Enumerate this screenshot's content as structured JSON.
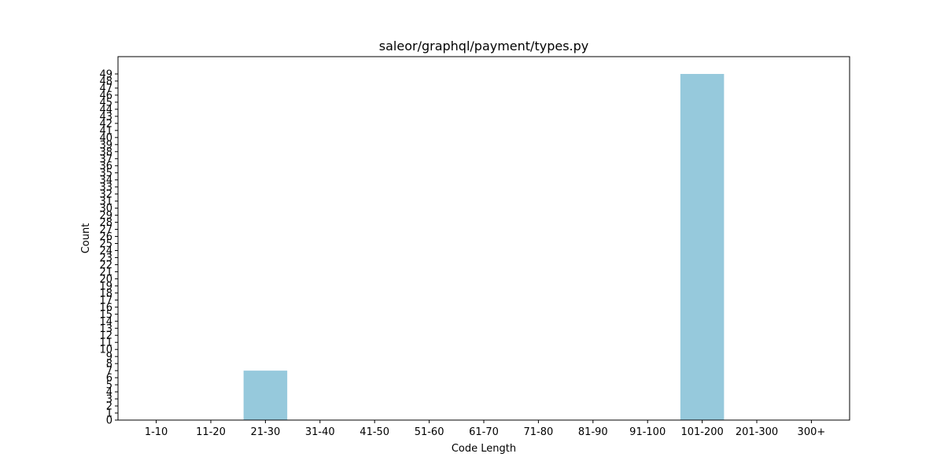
{
  "chart_data": {
    "type": "bar",
    "title": "saleor/graphql/payment/types.py",
    "xlabel": "Code Length",
    "ylabel": "Count",
    "categories": [
      "1-10",
      "11-20",
      "21-30",
      "31-40",
      "41-50",
      "51-60",
      "61-70",
      "71-80",
      "81-90",
      "91-100",
      "101-200",
      "201-300",
      "300+"
    ],
    "values": [
      0,
      0,
      7,
      0,
      0,
      0,
      0,
      0,
      0,
      0,
      49,
      0,
      0
    ],
    "ylim": [
      0,
      51.45
    ],
    "yticks": [
      0,
      1,
      2,
      3,
      4,
      5,
      6,
      7,
      8,
      9,
      10,
      11,
      12,
      13,
      14,
      15,
      16,
      17,
      18,
      19,
      20,
      21,
      22,
      23,
      24,
      25,
      26,
      27,
      28,
      29,
      30,
      31,
      32,
      33,
      34,
      35,
      36,
      37,
      38,
      39,
      40,
      41,
      42,
      43,
      44,
      45,
      46,
      47,
      48,
      49
    ],
    "bar_color": "#96c9dc",
    "grid": false
  }
}
